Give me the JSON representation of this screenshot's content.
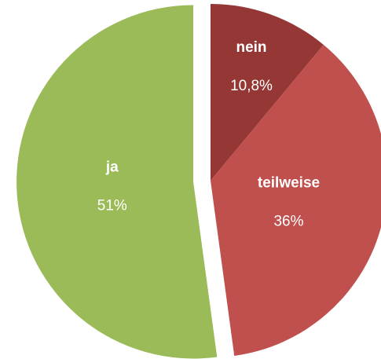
{
  "chart_data": {
    "type": "pie",
    "categories": [
      "nein",
      "teilweise",
      "ja"
    ],
    "values": [
      10.8,
      36,
      51
    ],
    "value_labels": [
      "10,8%",
      "36%",
      "51%"
    ],
    "colors": [
      "#953735",
      "#c0504d",
      "#9bbb59"
    ],
    "exploded": [
      false,
      false,
      true
    ]
  }
}
